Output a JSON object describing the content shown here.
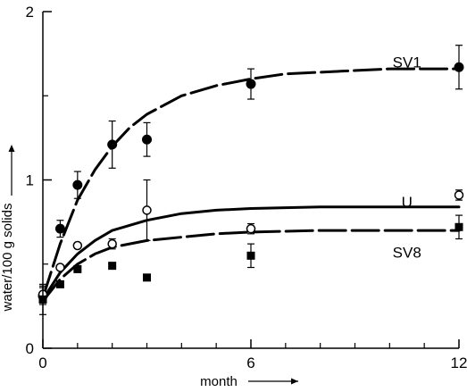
{
  "chart_data": {
    "type": "scatter",
    "title": "",
    "xlabel": "month",
    "ylabel": "water/100 g solids",
    "xlim": [
      0,
      12
    ],
    "ylim": [
      0,
      2
    ],
    "xticks": [
      {
        "value": 0,
        "label": "0"
      },
      {
        "value": 6,
        "label": "6"
      },
      {
        "value": 12,
        "label": "12"
      }
    ],
    "yticks": [
      {
        "value": 0,
        "label": "0"
      },
      {
        "value": 1,
        "label": "1"
      },
      {
        "value": 2,
        "label": "2"
      }
    ],
    "x_minor_ticks": [
      1,
      2,
      3,
      4,
      5,
      7,
      8,
      9,
      10,
      11
    ],
    "y_minor_ticks": [
      0.5,
      1.5
    ],
    "grid": false,
    "legend": "none",
    "series": [
      {
        "name": "SV1",
        "marker": "filled-circle",
        "line_style": "long-dash",
        "points": [
          {
            "x": 0,
            "y": 0.31,
            "err": 0.05
          },
          {
            "x": 0.5,
            "y": 0.71,
            "err": 0.05
          },
          {
            "x": 1,
            "y": 0.97,
            "err": 0.08
          },
          {
            "x": 2,
            "y": 1.21,
            "err": 0.14
          },
          {
            "x": 3,
            "y": 1.24,
            "err": 0.1
          },
          {
            "x": 6,
            "y": 1.57,
            "err": 0.09
          },
          {
            "x": 12,
            "y": 1.67,
            "err": 0.13
          }
        ],
        "curve": [
          [
            0,
            0.3
          ],
          [
            0.5,
            0.62
          ],
          [
            1,
            0.88
          ],
          [
            1.5,
            1.06
          ],
          [
            2,
            1.2
          ],
          [
            2.5,
            1.31
          ],
          [
            3,
            1.39
          ],
          [
            4,
            1.5
          ],
          [
            5,
            1.56
          ],
          [
            6,
            1.6
          ],
          [
            7,
            1.63
          ],
          [
            8,
            1.64
          ],
          [
            10,
            1.66
          ],
          [
            12,
            1.66
          ]
        ]
      },
      {
        "name": "U",
        "marker": "open-circle",
        "line_style": "solid",
        "points": [
          {
            "x": 0,
            "y": 0.32,
            "err": 0.05
          },
          {
            "x": 0.5,
            "y": 0.48,
            "err": 0
          },
          {
            "x": 1,
            "y": 0.61,
            "err": 0
          },
          {
            "x": 2,
            "y": 0.62,
            "err": 0.03
          },
          {
            "x": 3,
            "y": 0.82,
            "err": 0.18
          },
          {
            "x": 6,
            "y": 0.71,
            "err": 0.03
          },
          {
            "x": 12,
            "y": 0.91,
            "err": 0.03
          }
        ],
        "curve": [
          [
            0,
            0.29
          ],
          [
            0.5,
            0.45
          ],
          [
            1,
            0.56
          ],
          [
            1.5,
            0.64
          ],
          [
            2,
            0.7
          ],
          [
            3,
            0.76
          ],
          [
            4,
            0.8
          ],
          [
            5,
            0.82
          ],
          [
            6,
            0.83
          ],
          [
            8,
            0.84
          ],
          [
            10,
            0.84
          ],
          [
            12,
            0.84
          ]
        ]
      },
      {
        "name": "SV8",
        "marker": "filled-square",
        "line_style": "long-dash",
        "points": [
          {
            "x": 0,
            "y": 0.29,
            "err": 0.09
          },
          {
            "x": 0.5,
            "y": 0.38,
            "err": 0
          },
          {
            "x": 1,
            "y": 0.47,
            "err": 0
          },
          {
            "x": 2,
            "y": 0.49,
            "err": 0
          },
          {
            "x": 3,
            "y": 0.42,
            "err": 0
          },
          {
            "x": 6,
            "y": 0.55,
            "err": 0.07
          },
          {
            "x": 12,
            "y": 0.72,
            "err": 0.07
          }
        ],
        "curve": [
          [
            0,
            0.28
          ],
          [
            0.5,
            0.41
          ],
          [
            1,
            0.5
          ],
          [
            1.5,
            0.56
          ],
          [
            2,
            0.6
          ],
          [
            3,
            0.64
          ],
          [
            4,
            0.66
          ],
          [
            5,
            0.68
          ],
          [
            6,
            0.69
          ],
          [
            8,
            0.7
          ],
          [
            10,
            0.7
          ],
          [
            12,
            0.7
          ]
        ]
      }
    ],
    "series_labels": [
      {
        "text": "SV1",
        "x": 10.5,
        "y": 1.7
      },
      {
        "text": "U",
        "x": 10.5,
        "y": 0.87
      },
      {
        "text": "SV8",
        "x": 10.5,
        "y": 0.57
      }
    ]
  }
}
